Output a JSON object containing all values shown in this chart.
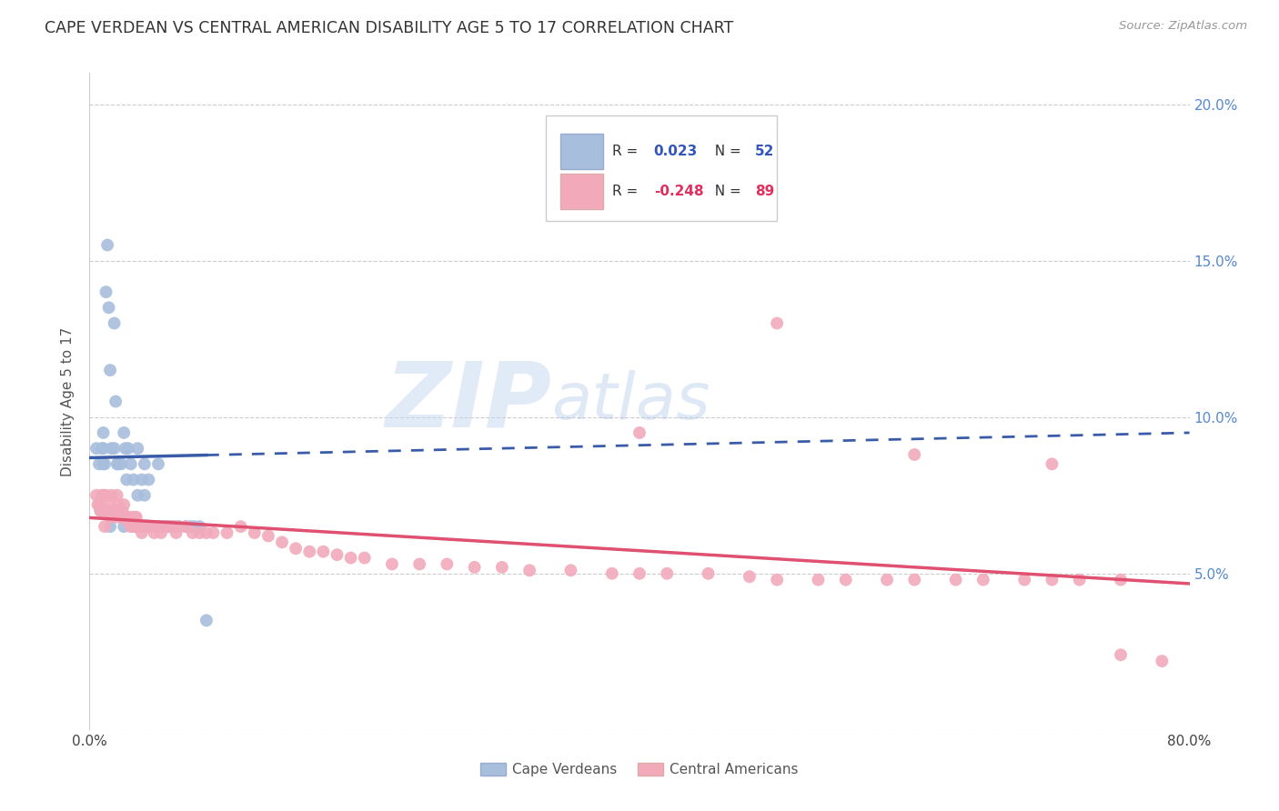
{
  "title": "CAPE VERDEAN VS CENTRAL AMERICAN DISABILITY AGE 5 TO 17 CORRELATION CHART",
  "source": "Source: ZipAtlas.com",
  "ylabel": "Disability Age 5 to 17",
  "xlim": [
    0.0,
    0.8
  ],
  "ylim": [
    0.0,
    0.21
  ],
  "grid_color": "#cccccc",
  "background": "#ffffff",
  "cape_verdean_color": "#a8bedd",
  "central_american_color": "#f2aabb",
  "cape_verdean_line_color": "#3a5ca8",
  "central_american_line_color": "#e05070",
  "r_cape_verdean": "0.023",
  "n_cape_verdean": "52",
  "r_central_american": "-0.248",
  "n_central_american": "89",
  "watermark_zip": "ZIP",
  "watermark_atlas": "atlas",
  "cv_x": [
    0.005,
    0.007,
    0.008,
    0.009,
    0.01,
    0.01,
    0.01,
    0.011,
    0.012,
    0.013,
    0.014,
    0.015,
    0.015,
    0.016,
    0.018,
    0.018,
    0.019,
    0.02,
    0.02,
    0.021,
    0.022,
    0.023,
    0.025,
    0.025,
    0.026,
    0.027,
    0.028,
    0.03,
    0.032,
    0.033,
    0.035,
    0.035,
    0.037,
    0.038,
    0.04,
    0.04,
    0.042,
    0.043,
    0.045,
    0.047,
    0.05,
    0.052,
    0.055,
    0.057,
    0.06,
    0.062,
    0.065,
    0.07,
    0.073,
    0.076,
    0.08,
    0.085
  ],
  "cv_y": [
    0.09,
    0.085,
    0.07,
    0.09,
    0.095,
    0.09,
    0.085,
    0.085,
    0.14,
    0.155,
    0.135,
    0.115,
    0.065,
    0.09,
    0.09,
    0.13,
    0.105,
    0.085,
    0.07,
    0.085,
    0.07,
    0.085,
    0.095,
    0.065,
    0.09,
    0.08,
    0.09,
    0.085,
    0.08,
    0.065,
    0.09,
    0.075,
    0.065,
    0.08,
    0.085,
    0.075,
    0.065,
    0.08,
    0.065,
    0.065,
    0.085,
    0.065,
    0.065,
    0.065,
    0.065,
    0.065,
    0.065,
    0.065,
    0.065,
    0.065,
    0.065,
    0.035
  ],
  "ca_x": [
    0.005,
    0.006,
    0.007,
    0.008,
    0.009,
    0.01,
    0.01,
    0.011,
    0.012,
    0.013,
    0.014,
    0.015,
    0.016,
    0.017,
    0.018,
    0.019,
    0.02,
    0.021,
    0.022,
    0.023,
    0.024,
    0.025,
    0.026,
    0.027,
    0.028,
    0.03,
    0.031,
    0.032,
    0.033,
    0.034,
    0.035,
    0.037,
    0.038,
    0.04,
    0.042,
    0.045,
    0.047,
    0.05,
    0.052,
    0.055,
    0.058,
    0.06,
    0.063,
    0.065,
    0.07,
    0.075,
    0.08,
    0.085,
    0.09,
    0.1,
    0.11,
    0.12,
    0.13,
    0.14,
    0.15,
    0.16,
    0.17,
    0.18,
    0.19,
    0.2,
    0.22,
    0.24,
    0.26,
    0.28,
    0.3,
    0.32,
    0.35,
    0.38,
    0.4,
    0.42,
    0.45,
    0.48,
    0.5,
    0.53,
    0.55,
    0.58,
    0.6,
    0.63,
    0.65,
    0.68,
    0.7,
    0.72,
    0.75,
    0.4,
    0.5,
    0.6,
    0.7,
    0.75,
    0.78
  ],
  "ca_y": [
    0.075,
    0.072,
    0.072,
    0.07,
    0.075,
    0.075,
    0.07,
    0.065,
    0.075,
    0.07,
    0.072,
    0.068,
    0.075,
    0.07,
    0.07,
    0.068,
    0.075,
    0.072,
    0.07,
    0.068,
    0.07,
    0.072,
    0.068,
    0.067,
    0.068,
    0.065,
    0.068,
    0.065,
    0.068,
    0.068,
    0.065,
    0.065,
    0.063,
    0.065,
    0.065,
    0.065,
    0.063,
    0.065,
    0.063,
    0.065,
    0.065,
    0.065,
    0.063,
    0.065,
    0.065,
    0.063,
    0.063,
    0.063,
    0.063,
    0.063,
    0.065,
    0.063,
    0.062,
    0.06,
    0.058,
    0.057,
    0.057,
    0.056,
    0.055,
    0.055,
    0.053,
    0.053,
    0.053,
    0.052,
    0.052,
    0.051,
    0.051,
    0.05,
    0.05,
    0.05,
    0.05,
    0.049,
    0.048,
    0.048,
    0.048,
    0.048,
    0.048,
    0.048,
    0.048,
    0.048,
    0.048,
    0.048,
    0.048,
    0.095,
    0.13,
    0.088,
    0.085,
    0.024,
    0.022
  ]
}
